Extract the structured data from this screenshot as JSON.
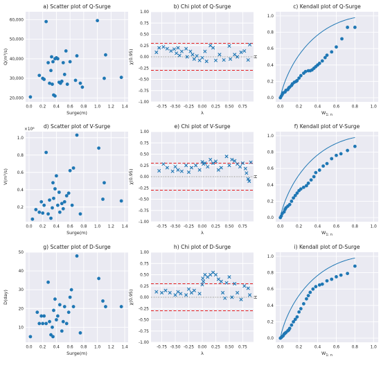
{
  "colors": {
    "panel_bg": "#eaeaf2",
    "grid": "#ffffff",
    "marker": "#1f77b4",
    "bound": "#e41a1c",
    "text": "#222222"
  },
  "chart_data": [
    {
      "type": "scatter",
      "marker": "circle",
      "title": "a) Scatter plot of Q-Surge",
      "xlabel": "Surge(m)",
      "ylabel": "Q(m³/s)",
      "xlim": [
        -0.05,
        1.45
      ],
      "ylim": [
        18000,
        64000
      ],
      "xticks": [
        0.0,
        0.2,
        0.4,
        0.6,
        0.8,
        1.0,
        1.2,
        1.4
      ],
      "xticklabels": [
        "0.0",
        "0.2",
        "0.4",
        "0.6",
        "0.8",
        "1.0",
        "1.2",
        "1.4"
      ],
      "yticks": [
        20000,
        30000,
        40000,
        50000,
        60000
      ],
      "yticklabels": [
        "20,000",
        "30,000",
        "40,000",
        "50,000",
        "60,000"
      ],
      "x": [
        0.02,
        0.15,
        0.2,
        0.22,
        0.25,
        0.28,
        0.3,
        0.32,
        0.33,
        0.34,
        0.35,
        0.36,
        0.38,
        0.38,
        0.4,
        0.42,
        0.44,
        0.46,
        0.48,
        0.5,
        0.52,
        0.54,
        0.56,
        0.6,
        0.68,
        0.7,
        0.75,
        0.78,
        1.0,
        1.1,
        1.12,
        1.35
      ],
      "y": [
        20500,
        31500,
        30000,
        29500,
        59000,
        38000,
        27500,
        34000,
        41000,
        27000,
        38500,
        21500,
        40000,
        21000,
        40500,
        40000,
        28000,
        27500,
        28500,
        38000,
        32000,
        44000,
        27000,
        38500,
        29000,
        41500,
        27500,
        25500,
        59500,
        30000,
        42000,
        30500
      ],
      "grid": true,
      "legend": "none"
    },
    {
      "type": "scatter",
      "marker": "x",
      "title": "b) Chi plot of Q-Surge",
      "xlabel": "λ",
      "ylabel": "χ(0.95)",
      "xlim": [
        -0.95,
        0.95
      ],
      "ylim": [
        -1.0,
        1.0
      ],
      "xticks": [
        -0.75,
        -0.5,
        -0.25,
        0.0,
        0.25,
        0.5,
        0.75
      ],
      "xticklabels": [
        "-0.75",
        "-0.50",
        "-0.25",
        "0.00",
        "0.25",
        "0.50",
        "0.75"
      ],
      "yticks": [
        -1.0,
        -0.75,
        -0.5,
        -0.25,
        0.0,
        0.25,
        0.5,
        0.75,
        1.0
      ],
      "yticklabels": [
        "-1.00",
        "-0.75",
        "-0.50",
        "-0.25",
        "0.00",
        "0.25",
        "0.50",
        "0.75",
        "1.00"
      ],
      "bounds": [
        0.3,
        -0.3
      ],
      "x": [
        -0.85,
        -0.8,
        -0.72,
        -0.65,
        -0.58,
        -0.52,
        -0.48,
        -0.45,
        -0.42,
        -0.38,
        -0.3,
        -0.28,
        -0.22,
        -0.18,
        -0.15,
        -0.1,
        -0.05,
        0.0,
        0.05,
        0.08,
        0.15,
        0.2,
        0.25,
        0.32,
        0.4,
        0.5,
        0.52,
        0.6,
        0.65,
        0.72,
        0.78,
        0.85,
        0.88
      ],
      "y": [
        0.1,
        0.2,
        0.22,
        0.18,
        0.13,
        0.17,
        0.08,
        0.2,
        0.03,
        0.12,
        0.18,
        0.0,
        0.12,
        0.05,
        -0.05,
        0.02,
        -0.08,
        -0.02,
        0.12,
        -0.1,
        0.25,
        0.2,
        -0.08,
        0.05,
        -0.07,
        0.24,
        -0.05,
        0.05,
        0.0,
        0.1,
        0.13,
        -0.07,
        0.27
      ],
      "grid": true,
      "legend": "none"
    },
    {
      "type": "scatter",
      "marker": "circle",
      "title": "c) Kendall plot of Q-Surge",
      "xlabel": "W",
      "xlabel_sub": "1: n",
      "ylabel": "H",
      "xlim": [
        -0.05,
        1.05
      ],
      "ylim": [
        -0.05,
        1.05
      ],
      "xticks": [
        0.0,
        0.2,
        0.4,
        0.6,
        0.8,
        1.0
      ],
      "xticklabels": [
        "0.0",
        "0.2",
        "0.4",
        "0.6",
        "0.8",
        "1.0"
      ],
      "yticks": [
        0.0,
        0.2,
        0.4,
        0.6,
        0.8,
        1.0
      ],
      "yticklabels": [
        "0.0",
        "0.2",
        "0.4",
        "0.6",
        "0.8",
        "1.0"
      ],
      "x": [
        0.0,
        0.01,
        0.02,
        0.03,
        0.05,
        0.06,
        0.08,
        0.09,
        0.1,
        0.12,
        0.13,
        0.15,
        0.17,
        0.18,
        0.2,
        0.22,
        0.25,
        0.27,
        0.3,
        0.32,
        0.34,
        0.36,
        0.38,
        0.4,
        0.42,
        0.45,
        0.48,
        0.5,
        0.55,
        0.6,
        0.66,
        0.72,
        0.8
      ],
      "y": [
        0.0,
        0.02,
        0.04,
        0.06,
        0.07,
        0.09,
        0.1,
        0.12,
        0.13,
        0.15,
        0.17,
        0.19,
        0.2,
        0.21,
        0.24,
        0.27,
        0.3,
        0.32,
        0.33,
        0.33,
        0.34,
        0.36,
        0.38,
        0.4,
        0.42,
        0.45,
        0.49,
        0.52,
        0.56,
        0.62,
        0.72,
        0.86,
        0.86
      ],
      "grid": true,
      "legend": "none"
    },
    {
      "type": "scatter",
      "marker": "circle",
      "title": "d) Scatter plot of V-Surge",
      "xlabel": "Surge(m)",
      "ylabel": "V(m³/s)",
      "xlim": [
        -0.05,
        1.45
      ],
      "ylim": [
        0.03,
        1.07
      ],
      "ymultiplier": "×10⁶",
      "xticks": [
        0.0,
        0.2,
        0.4,
        0.6,
        0.8,
        1.0,
        1.2,
        1.4
      ],
      "xticklabels": [
        "0.0",
        "0.2",
        "0.4",
        "0.6",
        "0.8",
        "1.0",
        "1.2",
        "1.4"
      ],
      "yticks": [
        0.2,
        0.4,
        0.6,
        0.8,
        1.0
      ],
      "yticklabels": [
        "0.2",
        "0.4",
        "0.6",
        "0.8",
        "1.0"
      ],
      "x": [
        0.05,
        0.1,
        0.15,
        0.18,
        0.2,
        0.22,
        0.25,
        0.28,
        0.3,
        0.32,
        0.34,
        0.35,
        0.36,
        0.38,
        0.4,
        0.42,
        0.44,
        0.45,
        0.48,
        0.5,
        0.52,
        0.55,
        0.58,
        0.6,
        0.63,
        0.65,
        0.7,
        0.75,
        1.02,
        1.08,
        1.1,
        1.35
      ],
      "y": [
        0.06,
        0.17,
        0.14,
        0.26,
        0.13,
        0.22,
        0.83,
        0.12,
        0.28,
        0.07,
        0.19,
        0.48,
        0.3,
        0.41,
        0.56,
        0.22,
        0.37,
        0.14,
        0.24,
        0.18,
        0.26,
        0.33,
        0.36,
        0.62,
        0.22,
        0.65,
        1.03,
        0.12,
        0.88,
        0.29,
        0.48,
        0.27
      ],
      "grid": true,
      "legend": "none"
    },
    {
      "type": "scatter",
      "marker": "x",
      "title": "e) Chi plot of V-Surge",
      "xlabel": "λ",
      "ylabel": "χ(0.95)",
      "xlim": [
        -0.95,
        0.95
      ],
      "ylim": [
        -1.0,
        1.0
      ],
      "xticks": [
        -0.75,
        -0.5,
        -0.25,
        0.0,
        0.25,
        0.5,
        0.75
      ],
      "xticklabels": [
        "-0.75",
        "-0.50",
        "-0.25",
        "0.00",
        "0.25",
        "0.50",
        "0.75"
      ],
      "yticks": [
        -1.0,
        -0.75,
        -0.5,
        -0.25,
        0.0,
        0.25,
        0.5,
        0.75,
        1.0
      ],
      "yticklabels": [
        "-1.00",
        "-0.75",
        "-0.50",
        "-0.25",
        "0.00",
        "0.25",
        "0.50",
        "0.75",
        "1.00"
      ],
      "bounds": [
        0.3,
        -0.3
      ],
      "x": [
        -0.8,
        -0.72,
        -0.65,
        -0.55,
        -0.5,
        -0.45,
        -0.38,
        -0.3,
        -0.25,
        -0.2,
        -0.12,
        -0.05,
        0.0,
        0.02,
        0.05,
        0.1,
        0.15,
        0.2,
        0.25,
        0.3,
        0.35,
        0.45,
        0.5,
        0.55,
        0.6,
        0.65,
        0.7,
        0.75,
        0.8,
        0.82,
        0.85,
        0.87,
        0.9
      ],
      "y": [
        0.13,
        0.28,
        0.2,
        0.12,
        0.22,
        0.15,
        0.12,
        0.25,
        0.1,
        0.2,
        0.25,
        0.15,
        0.33,
        0.28,
        0.3,
        0.22,
        0.38,
        0.3,
        0.34,
        0.15,
        0.2,
        0.45,
        0.25,
        0.38,
        0.35,
        0.28,
        0.22,
        0.3,
        0.18,
        0.08,
        -0.05,
        -0.1,
        0.32
      ],
      "grid": true,
      "legend": "none"
    },
    {
      "type": "scatter",
      "marker": "circle",
      "title": "f) Kendall plot of V-Surge",
      "xlabel": "W",
      "xlabel_sub": "1: n",
      "ylabel": "H",
      "xlim": [
        -0.05,
        1.05
      ],
      "ylim": [
        -0.05,
        1.05
      ],
      "xticks": [
        0.0,
        0.2,
        0.4,
        0.6,
        0.8,
        1.0
      ],
      "xticklabels": [
        "0.0",
        "0.2",
        "0.4",
        "0.6",
        "0.8",
        "1.0"
      ],
      "yticks": [
        0.0,
        0.2,
        0.4,
        0.6,
        0.8,
        1.0
      ],
      "yticklabels": [
        "0.0",
        "0.2",
        "0.4",
        "0.6",
        "0.8",
        "1.0"
      ],
      "x": [
        0.0,
        0.01,
        0.02,
        0.04,
        0.05,
        0.06,
        0.08,
        0.1,
        0.12,
        0.14,
        0.16,
        0.18,
        0.2,
        0.22,
        0.25,
        0.28,
        0.3,
        0.33,
        0.36,
        0.38,
        0.42,
        0.46,
        0.5,
        0.55,
        0.6,
        0.65,
        0.72,
        0.8
      ],
      "y": [
        0.0,
        0.02,
        0.05,
        0.07,
        0.1,
        0.12,
        0.14,
        0.16,
        0.2,
        0.24,
        0.27,
        0.3,
        0.33,
        0.35,
        0.37,
        0.39,
        0.42,
        0.46,
        0.5,
        0.55,
        0.58,
        0.63,
        0.66,
        0.72,
        0.76,
        0.78,
        0.82,
        0.87
      ],
      "grid": true,
      "legend": "none"
    },
    {
      "type": "scatter",
      "marker": "circle",
      "title": "g) Scatter plot of D-Surge",
      "xlabel": "Surge(m)",
      "ylabel": "D(day)",
      "xlim": [
        -0.05,
        1.45
      ],
      "ylim": [
        2,
        50
      ],
      "xticks": [
        0.0,
        0.2,
        0.4,
        0.6,
        0.8,
        1.0,
        1.2,
        1.4
      ],
      "xticklabels": [
        "0.0",
        "0.2",
        "0.4",
        "0.6",
        "0.8",
        "1.0",
        "1.2",
        "1.4"
      ],
      "yticks": [
        10,
        20,
        30,
        40,
        50
      ],
      "yticklabels": [
        "10",
        "20",
        "30",
        "40",
        "50"
      ],
      "x": [
        0.02,
        0.12,
        0.15,
        0.18,
        0.2,
        0.22,
        0.25,
        0.28,
        0.3,
        0.32,
        0.34,
        0.35,
        0.36,
        0.38,
        0.4,
        0.42,
        0.45,
        0.48,
        0.5,
        0.52,
        0.55,
        0.58,
        0.6,
        0.62,
        0.65,
        0.7,
        0.75,
        1.02,
        1.08,
        1.12,
        1.35
      ],
      "y": [
        5,
        18,
        12,
        16,
        12,
        16,
        12,
        34,
        13,
        6,
        10,
        5,
        19,
        25,
        14,
        16,
        22,
        8,
        13,
        21,
        12,
        18,
        26,
        30,
        21,
        48,
        7,
        36,
        24,
        21,
        21
      ],
      "grid": true,
      "legend": "none"
    },
    {
      "type": "scatter",
      "marker": "x",
      "title": "h) Chi plot of D-Surge",
      "xlabel": "λ",
      "ylabel": "χ(0.95)",
      "xlim": [
        -0.95,
        0.95
      ],
      "ylim": [
        -1.0,
        1.0
      ],
      "xticks": [
        -0.75,
        -0.5,
        -0.25,
        0.0,
        0.25,
        0.5,
        0.75
      ],
      "xticklabels": [
        "-0.75",
        "-0.50",
        "-0.25",
        "0.00",
        "0.25",
        "0.50",
        "0.75"
      ],
      "yticks": [
        -1.0,
        -0.75,
        -0.5,
        -0.25,
        0.0,
        0.25,
        0.5,
        0.75,
        1.0
      ],
      "yticklabels": [
        "-1.00",
        "-0.75",
        "-0.50",
        "-0.25",
        "0.00",
        "0.25",
        "0.50",
        "0.75",
        "1.00"
      ],
      "bounds": [
        0.3,
        -0.3
      ],
      "x": [
        -0.85,
        -0.75,
        -0.68,
        -0.6,
        -0.5,
        -0.45,
        -0.4,
        -0.3,
        -0.25,
        -0.2,
        -0.15,
        -0.05,
        0.0,
        0.01,
        0.02,
        0.05,
        0.1,
        0.15,
        0.2,
        0.25,
        0.3,
        0.35,
        0.38,
        0.42,
        0.45,
        0.5,
        0.55,
        0.6,
        0.65,
        0.72,
        0.78,
        0.85,
        0.88
      ],
      "y": [
        0.12,
        0.1,
        0.15,
        0.1,
        0.05,
        0.12,
        0.08,
        0.05,
        0.18,
        0.1,
        0.15,
        0.08,
        0.28,
        0.42,
        0.35,
        0.5,
        0.45,
        0.5,
        0.55,
        0.5,
        0.4,
        0.35,
        0.1,
        -0.02,
        0.32,
        0.45,
        0.0,
        0.3,
        0.1,
        -0.05,
        0.25,
        0.2,
        0.05
      ],
      "grid": true,
      "legend": "none"
    },
    {
      "type": "scatter",
      "marker": "circle",
      "title": "i) Kendall plot of D-Surge",
      "xlabel": "W",
      "xlabel_sub": "1: n",
      "ylabel": "H",
      "xlim": [
        -0.05,
        1.05
      ],
      "ylim": [
        -0.05,
        1.05
      ],
      "xticks": [
        0.0,
        0.2,
        0.4,
        0.6,
        0.8,
        1.0
      ],
      "xticklabels": [
        "0.0",
        "0.2",
        "0.4",
        "0.6",
        "0.8",
        "1.0"
      ],
      "yticks": [
        0.0,
        0.2,
        0.4,
        0.6,
        0.8,
        1.0
      ],
      "yticklabels": [
        "0.0",
        "0.2",
        "0.4",
        "0.6",
        "0.8",
        "1.0"
      ],
      "x": [
        0.0,
        0.01,
        0.02,
        0.03,
        0.04,
        0.05,
        0.06,
        0.08,
        0.09,
        0.1,
        0.12,
        0.14,
        0.16,
        0.18,
        0.2,
        0.22,
        0.25,
        0.28,
        0.3,
        0.32,
        0.35,
        0.38,
        0.42,
        0.45,
        0.5,
        0.55,
        0.6,
        0.65,
        0.72,
        0.8
      ],
      "y": [
        0.0,
        0.01,
        0.02,
        0.03,
        0.05,
        0.06,
        0.07,
        0.09,
        0.1,
        0.12,
        0.16,
        0.2,
        0.23,
        0.26,
        0.32,
        0.36,
        0.42,
        0.48,
        0.52,
        0.56,
        0.6,
        0.63,
        0.65,
        0.66,
        0.7,
        0.72,
        0.75,
        0.77,
        0.79,
        0.88
      ],
      "grid": true,
      "legend": "none"
    }
  ]
}
